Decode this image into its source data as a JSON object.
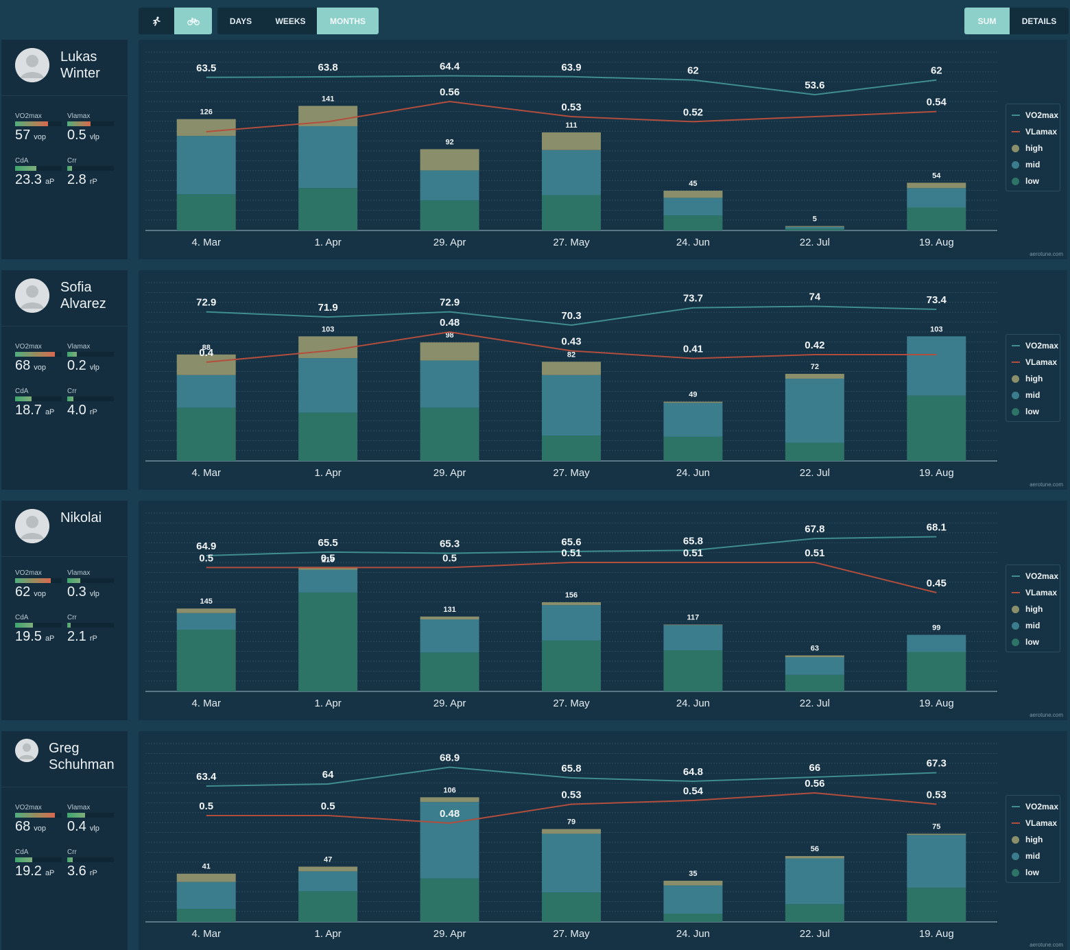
{
  "toolbar": {
    "sport_buttons": [
      {
        "icon": "running-icon",
        "active": false
      },
      {
        "icon": "bicycle-icon",
        "active": true
      }
    ],
    "period_buttons": [
      {
        "label": "DAYS",
        "active": false
      },
      {
        "label": "WEEKS",
        "active": false
      },
      {
        "label": "MONTHS",
        "active": true
      }
    ],
    "view_buttons": [
      {
        "label": "SUM",
        "active": true
      },
      {
        "label": "DETAILS",
        "active": false
      }
    ]
  },
  "legend": {
    "items": [
      {
        "label": "VO2max",
        "kind": "line",
        "color": "#3f8e90"
      },
      {
        "label": "VLamax",
        "kind": "line",
        "color": "#b34e3d"
      },
      {
        "label": "high",
        "kind": "dot",
        "color": "#8b8e6a"
      },
      {
        "label": "mid",
        "kind": "dot",
        "color": "#3b7d8c"
      },
      {
        "label": "low",
        "kind": "dot",
        "color": "#2d7466"
      }
    ]
  },
  "watermark": "aerotune.com",
  "colors": {
    "background": "#193e52",
    "panel": "#163245",
    "card": "#142e3f",
    "accent": "#8dcfc9",
    "vo2_line": "#3f8e90",
    "vla_line": "#b34e3d",
    "bar_high": "#8b8e6a",
    "bar_mid": "#3b7d8c",
    "bar_low": "#2d7466"
  },
  "athletes": [
    {
      "name": "Lukas\nWinter",
      "metrics": {
        "vo2max": {
          "label": "VO2max",
          "value": "57",
          "unit": "vop",
          "level": 0.7
        },
        "vlamax": {
          "label": "Vlamax",
          "value": "0.5",
          "unit": "vlp",
          "level": 0.5
        },
        "cda": {
          "label": "CdA",
          "value": "23.3",
          "unit": "aP",
          "level": 0.45
        },
        "crr": {
          "label": "Crr",
          "value": "2.8",
          "unit": "rP",
          "level": 0.1
        }
      }
    },
    {
      "name": "Sofia\nAlvarez",
      "metrics": {
        "vo2max": {
          "label": "VO2max",
          "value": "68",
          "unit": "vop",
          "level": 0.85
        },
        "vlamax": {
          "label": "Vlamax",
          "value": "0.2",
          "unit": "vlp",
          "level": 0.2
        },
        "cda": {
          "label": "CdA",
          "value": "18.7",
          "unit": "aP",
          "level": 0.35
        },
        "crr": {
          "label": "Crr",
          "value": "4.0",
          "unit": "rP",
          "level": 0.13
        }
      }
    },
    {
      "name": "Nikolai",
      "metrics": {
        "vo2max": {
          "label": "VO2max",
          "value": "62",
          "unit": "vop",
          "level": 0.77
        },
        "vlamax": {
          "label": "Vlamax",
          "value": "0.3",
          "unit": "vlp",
          "level": 0.28
        },
        "cda": {
          "label": "CdA",
          "value": "19.5",
          "unit": "aP",
          "level": 0.38
        },
        "crr": {
          "label": "Crr",
          "value": "2.1",
          "unit": "rP",
          "level": 0.08
        }
      }
    },
    {
      "name": "Greg\nSchuhman",
      "metrics": {
        "vo2max": {
          "label": "VO2max",
          "value": "68",
          "unit": "vop",
          "level": 0.85
        },
        "vlamax": {
          "label": "Vlamax",
          "value": "0.4",
          "unit": "vlp",
          "level": 0.38
        },
        "cda": {
          "label": "CdA",
          "value": "19.2",
          "unit": "aP",
          "level": 0.37
        },
        "crr": {
          "label": "Crr",
          "value": "3.6",
          "unit": "rP",
          "level": 0.12
        }
      }
    }
  ],
  "chart_data": [
    {
      "type": "bar",
      "categories": [
        "4. Mar",
        "1. Apr",
        "29. Apr",
        "27. May",
        "24. Jun",
        "22. Jul",
        "19. Aug"
      ],
      "totals": [
        126,
        141,
        92,
        111,
        45,
        5,
        54
      ],
      "series": [
        {
          "name": "low",
          "values": [
            41,
            48,
            34,
            40,
            17,
            2,
            26
          ]
        },
        {
          "name": "mid",
          "values": [
            66,
            70,
            34,
            51,
            20,
            2,
            22
          ]
        },
        {
          "name": "high",
          "values": [
            19,
            23,
            24,
            20,
            8,
            1,
            6
          ]
        }
      ],
      "lines": [
        {
          "name": "VO2max",
          "values": [
            63.5,
            63.8,
            64.4,
            63.9,
            62,
            53.6,
            62
          ],
          "labels": [
            "63.5",
            "63.8",
            "64.4",
            "63.9",
            "62",
            "53.6",
            "62"
          ]
        },
        {
          "name": "VLamax",
          "values": [
            0.5,
            0.52,
            0.56,
            0.53,
            0.52,
            0.53,
            0.54
          ],
          "labels": [
            "",
            "",
            "0.56",
            "0.53",
            "0.52",
            "",
            "0.54"
          ]
        }
      ]
    },
    {
      "type": "bar",
      "categories": [
        "4. Mar",
        "1. Apr",
        "29. Apr",
        "27. May",
        "24. Jun",
        "22. Jul",
        "19. Aug"
      ],
      "totals": [
        88,
        103,
        98,
        82,
        49,
        72,
        103
      ],
      "series": [
        {
          "name": "low",
          "values": [
            44,
            40,
            44,
            21,
            20,
            15,
            54
          ]
        },
        {
          "name": "mid",
          "values": [
            27,
            45,
            39,
            50,
            28,
            53,
            49
          ]
        },
        {
          "name": "high",
          "values": [
            17,
            18,
            15,
            11,
            1,
            4,
            0
          ]
        }
      ],
      "lines": [
        {
          "name": "VO2max",
          "values": [
            72.9,
            71.9,
            72.9,
            70.3,
            73.7,
            74,
            73.4
          ],
          "labels": [
            "72.9",
            "71.9",
            "72.9",
            "70.3",
            "73.7",
            "74",
            "73.4"
          ]
        },
        {
          "name": "VLamax",
          "values": [
            0.4,
            0.43,
            0.48,
            0.43,
            0.41,
            0.42,
            0.42
          ],
          "labels": [
            "0.4",
            "",
            "0.48",
            "0.43",
            "0.41",
            "0.42",
            ""
          ]
        }
      ]
    },
    {
      "type": "bar",
      "categories": [
        "4. Mar",
        "1. Apr",
        "29. Apr",
        "27. May",
        "24. Jun",
        "22. Jul",
        "19. Aug"
      ],
      "totals": [
        145,
        218,
        131,
        156,
        117,
        63,
        99
      ],
      "series": [
        {
          "name": "low",
          "values": [
            108,
            173,
            68,
            89,
            72,
            29,
            69
          ]
        },
        {
          "name": "mid",
          "values": [
            29,
            40,
            58,
            62,
            44,
            31,
            30
          ]
        },
        {
          "name": "high",
          "values": [
            8,
            5,
            5,
            5,
            1,
            3,
            0
          ]
        }
      ],
      "lines": [
        {
          "name": "VO2max",
          "values": [
            64.9,
            65.5,
            65.3,
            65.6,
            65.8,
            67.8,
            68.1
          ],
          "labels": [
            "64.9",
            "65.5",
            "65.3",
            "65.6",
            "65.8",
            "67.8",
            "68.1"
          ]
        },
        {
          "name": "VLamax",
          "values": [
            0.5,
            0.5,
            0.5,
            0.51,
            0.51,
            0.51,
            0.45
          ],
          "labels": [
            "0.5",
            "0.5",
            "0.5",
            "0.51",
            "0.51",
            "0.51",
            "0.45"
          ]
        }
      ]
    },
    {
      "type": "bar",
      "categories": [
        "4. Mar",
        "1. Apr",
        "29. Apr",
        "27. May",
        "24. Jun",
        "22. Jul",
        "19. Aug"
      ],
      "totals": [
        41,
        47,
        106,
        79,
        35,
        56,
        75
      ],
      "series": [
        {
          "name": "low",
          "values": [
            11,
            26,
            37,
            25,
            7,
            15,
            29
          ]
        },
        {
          "name": "mid",
          "values": [
            23,
            17,
            65,
            50,
            24,
            39,
            45
          ]
        },
        {
          "name": "high",
          "values": [
            7,
            4,
            4,
            4,
            4,
            2,
            1
          ]
        }
      ],
      "lines": [
        {
          "name": "VO2max",
          "values": [
            63.4,
            64,
            68.9,
            65.8,
            64.8,
            66,
            67.3
          ],
          "labels": [
            "63.4",
            "64",
            "68.9",
            "65.8",
            "64.8",
            "66",
            "67.3"
          ]
        },
        {
          "name": "VLamax",
          "values": [
            0.5,
            0.5,
            0.48,
            0.53,
            0.54,
            0.56,
            0.53
          ],
          "labels": [
            "0.5",
            "0.5",
            "0.48",
            "0.53",
            "0.54",
            "0.56",
            "0.53"
          ]
        }
      ]
    }
  ]
}
